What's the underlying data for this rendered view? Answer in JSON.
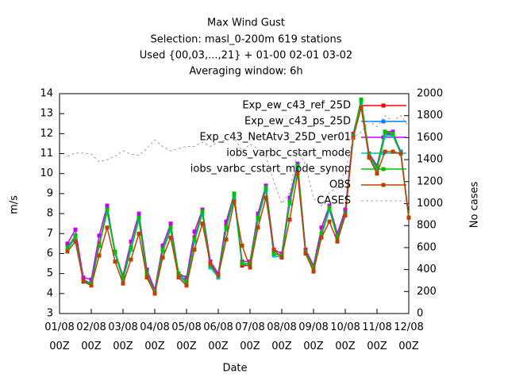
{
  "chart_data": {
    "type": "line",
    "title": "Max Wind Gust",
    "subtitle": [
      "Selection: masl_0-200m    619 stations",
      "Used {00,03,...,21} + 01-00 02-01 03-02",
      "Averaging window:  6h"
    ],
    "x_label": "Date",
    "y_label": "m/s",
    "y2_label": "No cases",
    "x": [
      6,
      12,
      18,
      24,
      30,
      36,
      42,
      48,
      54,
      60,
      66,
      72,
      78,
      84,
      90,
      96,
      102,
      108,
      114,
      120,
      126,
      132,
      138,
      144,
      150,
      156,
      162,
      168,
      174,
      180,
      186,
      192,
      198,
      204,
      210,
      216,
      222,
      228,
      234,
      240,
      246,
      252,
      258,
      264
    ],
    "xlim": [
      0,
      264
    ],
    "xticks": [
      {
        "value": 0,
        "label": "01/08 00Z"
      },
      {
        "value": 24,
        "label": "02/08 00Z"
      },
      {
        "value": 48,
        "label": "03/08 00Z"
      },
      {
        "value": 72,
        "label": "04/08 00Z"
      },
      {
        "value": 96,
        "label": "05/08 00Z"
      },
      {
        "value": 120,
        "label": "06/08 00Z"
      },
      {
        "value": 144,
        "label": "07/08 00Z"
      },
      {
        "value": 168,
        "label": "08/08 00Z"
      },
      {
        "value": 192,
        "label": "09/08 00Z"
      },
      {
        "value": 216,
        "label": "10/08 00Z"
      },
      {
        "value": 240,
        "label": "11/08 00Z"
      },
      {
        "value": 264,
        "label": "12/08 00Z"
      }
    ],
    "ylim": [
      3,
      14
    ],
    "yticks": [
      3,
      4,
      5,
      6,
      7,
      8,
      9,
      10,
      11,
      12,
      13,
      14
    ],
    "y2lim": [
      0,
      2000
    ],
    "y2ticks": [
      0,
      200,
      400,
      600,
      800,
      1000,
      1200,
      1400,
      1600,
      1800,
      2000
    ],
    "legend": "top-right",
    "series": [
      {
        "name": "Exp_ew_c43_ref_25D",
        "color": "#ff0000",
        "values": [
          6.3,
          6.9,
          4.6,
          4.5,
          6.5,
          8.2,
          6.1,
          4.8,
          6.3,
          7.8,
          5.0,
          4.0,
          6.2,
          7.3,
          5.0,
          4.6,
          6.8,
          8.1,
          5.4,
          4.9,
          7.4,
          8.9,
          5.4,
          5.4,
          7.8,
          9.3,
          6.0,
          5.9,
          8.6,
          10.4,
          6.1,
          5.3,
          7.0,
          8.3,
          6.9,
          8.1,
          11.9,
          13.7,
          10.9,
          10.3,
          12.0,
          12.0,
          11.0,
          7.8
        ]
      },
      {
        "name": "Exp_ew_c43_ps_25D",
        "color": "#0080ff",
        "values": [
          6.2,
          6.8,
          4.7,
          4.5,
          6.4,
          8.1,
          6.0,
          4.7,
          6.2,
          7.7,
          5.0,
          4.1,
          6.1,
          7.2,
          4.9,
          4.6,
          6.7,
          8.0,
          5.4,
          4.8,
          7.3,
          8.8,
          5.5,
          5.4,
          7.7,
          9.2,
          5.9,
          5.8,
          8.5,
          10.3,
          6.0,
          5.2,
          6.9,
          8.2,
          6.8,
          8.0,
          11.8,
          13.6,
          10.8,
          10.2,
          11.9,
          12.0,
          11.1,
          7.8
        ]
      },
      {
        "name": "Exp_c43_NetAtv3_25D_ver01",
        "color": "#c000ff",
        "values": [
          6.5,
          7.2,
          4.8,
          4.7,
          6.9,
          8.4,
          6.0,
          4.9,
          6.6,
          8.0,
          5.2,
          4.2,
          6.4,
          7.5,
          5.0,
          4.8,
          7.1,
          8.2,
          5.6,
          5.0,
          7.6,
          9.0,
          5.6,
          5.6,
          8.0,
          9.4,
          6.2,
          6.0,
          8.8,
          10.5,
          6.2,
          5.4,
          7.3,
          8.4,
          7.0,
          8.2,
          12.0,
          13.6,
          11.0,
          10.4,
          12.1,
          12.1,
          11.0,
          7.8
        ]
      },
      {
        "name": "iobs_varbc_cstart_mode",
        "color": "#00c0c0",
        "values": [
          6.2,
          6.8,
          4.6,
          4.5,
          6.4,
          8.1,
          6.0,
          4.7,
          6.2,
          7.7,
          4.9,
          4.1,
          6.1,
          7.2,
          4.9,
          4.5,
          6.6,
          8.0,
          5.3,
          4.8,
          7.2,
          8.8,
          5.5,
          5.4,
          7.7,
          9.2,
          5.9,
          5.8,
          8.5,
          10.3,
          6.0,
          5.2,
          6.9,
          8.2,
          6.8,
          8.0,
          11.8,
          13.6,
          10.8,
          10.2,
          11.9,
          11.9,
          11.0,
          7.8
        ]
      },
      {
        "name": "iobs_varbc_cstart_mode_synop",
        "color": "#00c000",
        "values": [
          6.3,
          6.9,
          4.6,
          4.5,
          6.4,
          8.2,
          6.1,
          4.8,
          6.3,
          7.8,
          5.0,
          4.0,
          6.2,
          7.3,
          5.0,
          4.6,
          6.7,
          8.1,
          5.4,
          4.9,
          7.3,
          9.0,
          5.5,
          5.5,
          7.8,
          9.3,
          6.0,
          5.9,
          8.6,
          10.4,
          6.1,
          5.3,
          7.0,
          8.3,
          6.8,
          8.0,
          11.9,
          13.7,
          10.9,
          10.3,
          12.1,
          12.0,
          11.0,
          7.8
        ]
      },
      {
        "name": "OBS",
        "color": "#c04000",
        "values": [
          6.1,
          6.6,
          4.6,
          4.4,
          5.9,
          7.3,
          5.6,
          4.5,
          5.7,
          7.0,
          4.8,
          4.0,
          5.8,
          6.8,
          4.8,
          4.4,
          6.2,
          7.5,
          5.5,
          4.9,
          6.7,
          8.6,
          6.4,
          5.3,
          7.3,
          8.8,
          6.2,
          5.8,
          7.7,
          10.0,
          6.0,
          5.1,
          6.8,
          7.6,
          6.6,
          7.9,
          11.8,
          13.3,
          10.8,
          10.0,
          11.1,
          11.1,
          11.0,
          7.8
        ]
      },
      {
        "name": "CASES",
        "color": "#a0a0a0",
        "axis": "y2",
        "dashed": true,
        "values": [
          1430,
          1460,
          1460,
          1450,
          1380,
          1400,
          1430,
          1480,
          1450,
          1440,
          1500,
          1580,
          1520,
          1480,
          1500,
          1520,
          1520,
          1560,
          1520,
          1560,
          1580,
          1600,
          1480,
          1540,
          1500,
          1430,
          1200,
          1000,
          1100,
          1500,
          1350,
          1050,
          980,
          1100,
          1150,
          1300,
          1600,
          1650,
          1750,
          1700,
          1800,
          1750,
          1800,
          1700
        ]
      }
    ]
  }
}
